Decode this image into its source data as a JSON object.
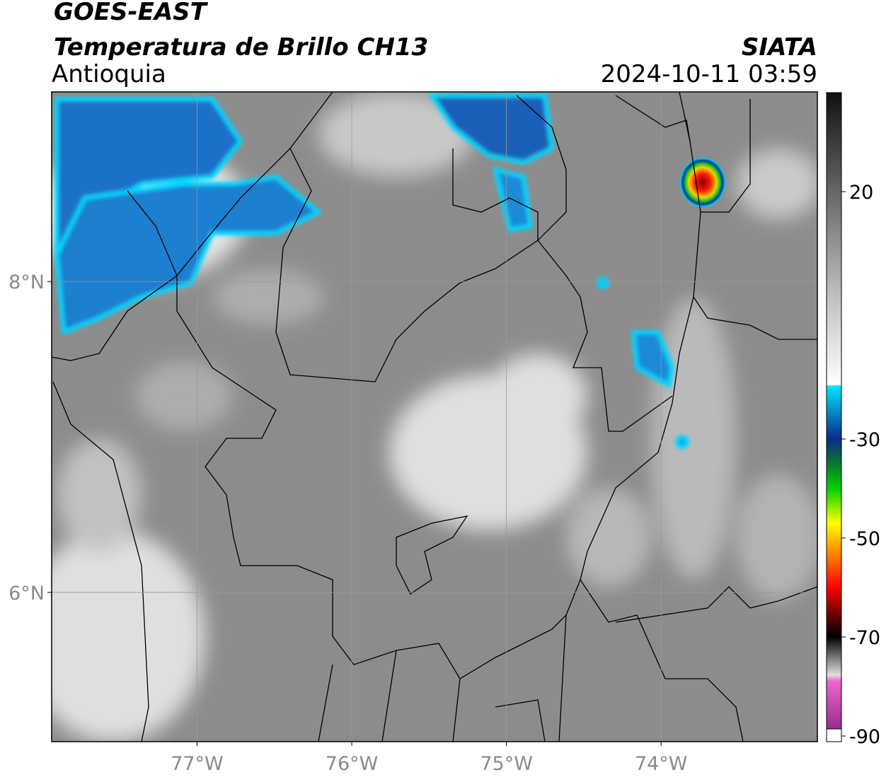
{
  "header": {
    "title": "GOES-EAST",
    "subtitle": "Temperatura de Brillo CH13",
    "region": "Antioquia",
    "source": "SIATA",
    "datetime": "2024-10-11 03:59"
  },
  "map": {
    "xlim": [
      -77.94,
      -72.99
    ],
    "ylim": [
      5.04,
      9.22
    ],
    "xticks": [
      {
        "value": -77,
        "label": "77°W"
      },
      {
        "value": -76,
        "label": "76°W"
      },
      {
        "value": -75,
        "label": "75°W"
      },
      {
        "value": -74,
        "label": "74°W"
      }
    ],
    "yticks": [
      {
        "value": 8,
        "label": "8°N"
      },
      {
        "value": 6,
        "label": "6°N"
      }
    ],
    "grid": true
  },
  "colorbar": {
    "lim": [
      -90,
      40
    ],
    "ticks": [
      20,
      -30,
      -50,
      -70,
      -90
    ]
  }
}
